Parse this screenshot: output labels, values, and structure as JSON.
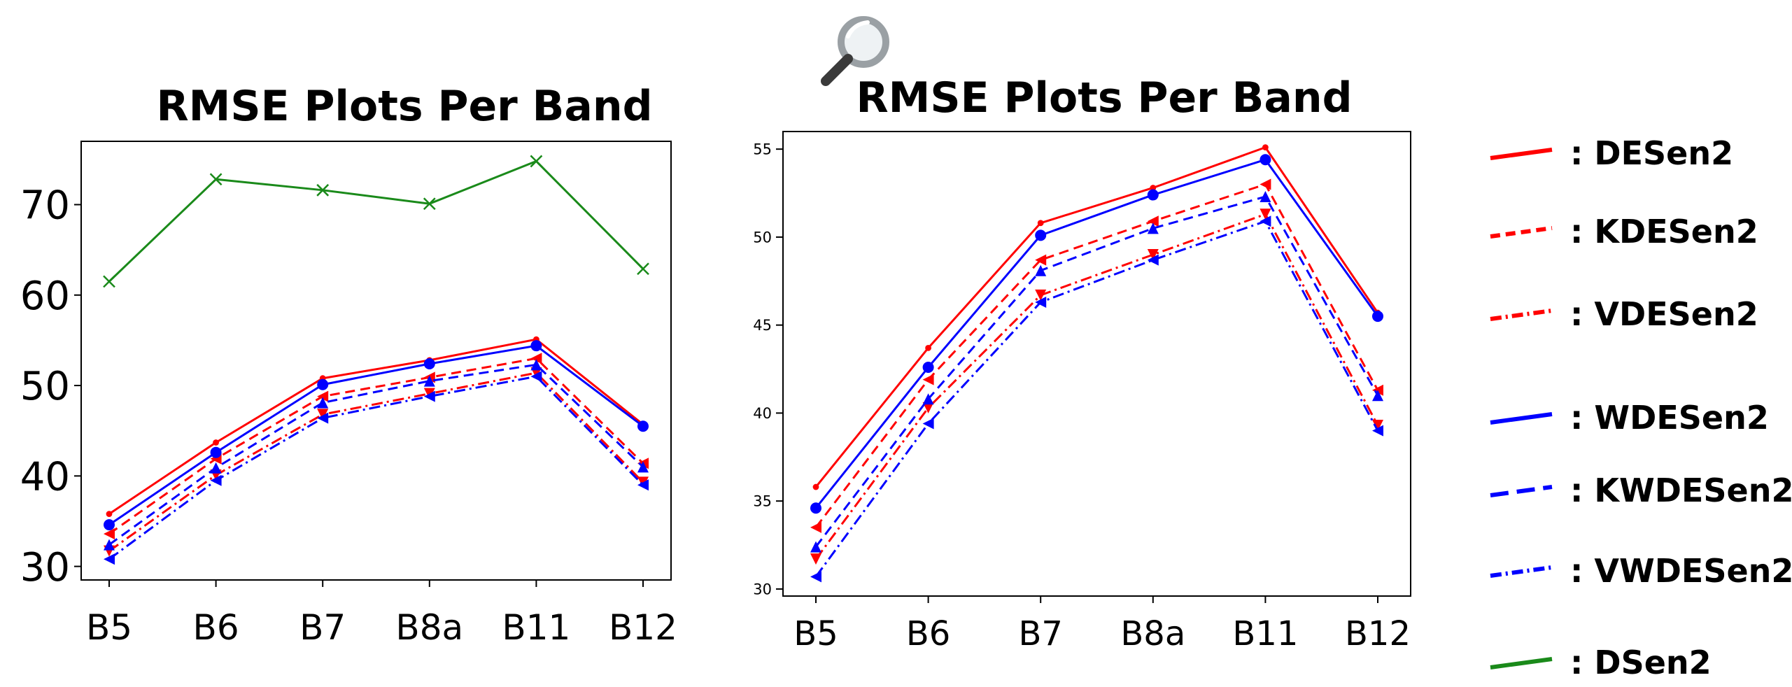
{
  "chart_data": [
    {
      "type": "line",
      "title": "RMSE Plots Per Band",
      "xlabel": "",
      "ylabel": "",
      "categories": [
        "B5",
        "B6",
        "B7",
        "B8a",
        "B11",
        "B12"
      ],
      "ylim": [
        28.5,
        77
      ],
      "yticks": [
        30,
        40,
        50,
        60,
        70
      ],
      "series": [
        {
          "name": "DESen2",
          "color": "#ff0000",
          "dash": "solid",
          "marker": "dot",
          "values": [
            35.8,
            43.7,
            50.8,
            52.8,
            55.1,
            45.7
          ]
        },
        {
          "name": "KDESen2",
          "color": "#ff0000",
          "dash": "dashed",
          "marker": "tri-left",
          "values": [
            33.6,
            41.9,
            48.8,
            50.9,
            53.0,
            41.4
          ]
        },
        {
          "name": "VDESen2",
          "color": "#ff0000",
          "dash": "dashdot",
          "marker": "tri-down",
          "values": [
            31.7,
            40.1,
            46.8,
            49.1,
            51.4,
            39.3
          ]
        },
        {
          "name": "WDESen2",
          "color": "#0000ff",
          "dash": "solid",
          "marker": "circle",
          "values": [
            34.6,
            42.6,
            50.1,
            52.4,
            54.4,
            45.5
          ]
        },
        {
          "name": "KWDESen2",
          "color": "#0000ff",
          "dash": "dashed",
          "marker": "tri-up",
          "values": [
            32.4,
            40.9,
            48.1,
            50.5,
            52.3,
            41.0
          ]
        },
        {
          "name": "VWDESen2",
          "color": "#0000ff",
          "dash": "dashdot",
          "marker": "tri-left",
          "values": [
            30.8,
            39.5,
            46.4,
            48.8,
            51.0,
            39.0
          ]
        },
        {
          "name": "DSen2",
          "color": "#1a8a1a",
          "dash": "solid",
          "marker": "x",
          "values": [
            61.5,
            72.8,
            71.6,
            70.1,
            74.8,
            62.9
          ]
        }
      ]
    },
    {
      "type": "line",
      "title": "RMSE Plots Per Band",
      "xlabel": "",
      "ylabel": "",
      "categories": [
        "B5",
        "B6",
        "B7",
        "B8a",
        "B11",
        "B12"
      ],
      "ylim": [
        29.6,
        56
      ],
      "yticks": [
        30,
        35,
        40,
        45,
        50,
        55
      ],
      "series": [
        {
          "name": "DESen2",
          "color": "#ff0000",
          "dash": "solid",
          "marker": "dot",
          "values": [
            35.8,
            43.7,
            50.8,
            52.8,
            55.1,
            45.7
          ]
        },
        {
          "name": "KDESen2",
          "color": "#ff0000",
          "dash": "dashed",
          "marker": "tri-left",
          "values": [
            33.5,
            41.9,
            48.7,
            50.9,
            53.0,
            41.3
          ]
        },
        {
          "name": "VDESen2",
          "color": "#ff0000",
          "dash": "dashdot",
          "marker": "tri-down",
          "values": [
            31.7,
            40.3,
            46.7,
            49.0,
            51.3,
            39.3
          ]
        },
        {
          "name": "WDESen2",
          "color": "#0000ff",
          "dash": "solid",
          "marker": "circle",
          "values": [
            34.6,
            42.6,
            50.1,
            52.4,
            54.4,
            45.5
          ]
        },
        {
          "name": "KWDESen2",
          "color": "#0000ff",
          "dash": "dashed",
          "marker": "tri-up",
          "values": [
            32.4,
            40.8,
            48.1,
            50.5,
            52.3,
            41.0
          ]
        },
        {
          "name": "VWDESen2",
          "color": "#0000ff",
          "dash": "dashdot",
          "marker": "tri-left",
          "values": [
            30.7,
            39.4,
            46.3,
            48.7,
            50.9,
            39.0
          ]
        }
      ]
    }
  ],
  "legend": {
    "placement": "right",
    "items": [
      {
        "label": ": DESen2",
        "color": "#ff0000",
        "dash": "solid"
      },
      {
        "label": ": KDESen2",
        "color": "#ff0000",
        "dash": "dashed"
      },
      {
        "label": ": VDESen2",
        "color": "#ff0000",
        "dash": "dashdot"
      },
      {
        "label": ": WDESen2",
        "color": "#0000ff",
        "dash": "solid"
      },
      {
        "label": ": KWDESen2",
        "color": "#0000ff",
        "dash": "longdash"
      },
      {
        "label": ": VWDESen2",
        "color": "#0000ff",
        "dash": "dashdot"
      },
      {
        "label": ": DSen2",
        "color": "#1a8a1a",
        "dash": "solid"
      }
    ]
  },
  "icons": {
    "zoom": "magnifier-icon"
  }
}
